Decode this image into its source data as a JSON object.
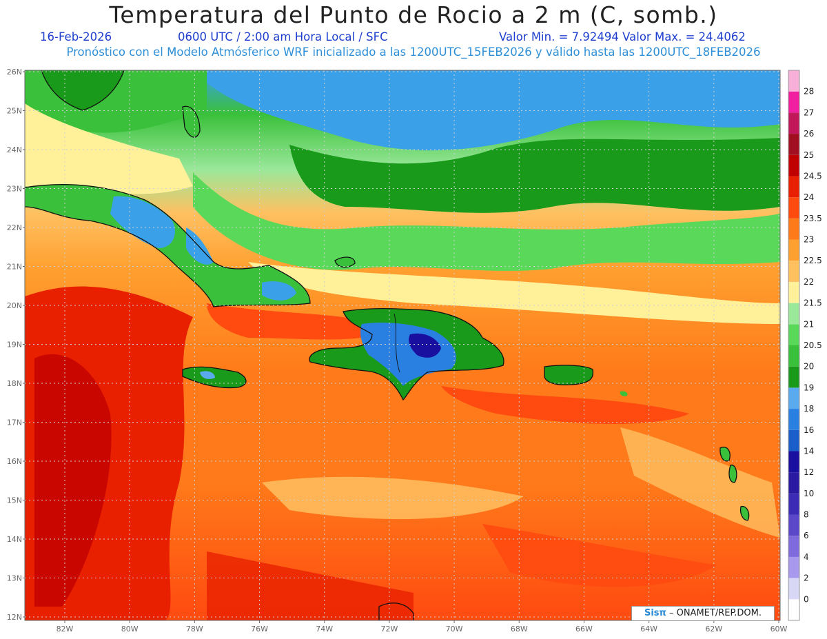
{
  "title": "Temperatura del Punto de Rocio a 2 m (C, somb.)",
  "date": "16-Feb-2026",
  "time": "0600 UTC / 2:00 am Hora Local / SFC",
  "minmax": "Valor Min. = 7.92494  Valor Max. = 24.4062",
  "model_info": "Pronóstico con el Modelo Atmósferico WRF inicializado a las 1200UTC_15FEB2026 y válido hasta las  1200UTC_18FEB2026",
  "lat_labels": [
    "26N",
    "25N",
    "24N",
    "23N",
    "22N",
    "21N",
    "20N",
    "19N",
    "18N",
    "17N",
    "16N",
    "15N",
    "14N",
    "13N",
    "12N"
  ],
  "lon_labels": [
    "82W",
    "80W",
    "78W",
    "76W",
    "74W",
    "72W",
    "70W",
    "68W",
    "66W",
    "64W",
    "62W",
    "60W"
  ],
  "colorbar": {
    "labels": [
      "0",
      "2",
      "4",
      "6",
      "8",
      "10",
      "12",
      "14",
      "16",
      "18",
      "19",
      "20",
      "20.5",
      "21",
      "21.5",
      "22",
      "22.5",
      "23",
      "23.5",
      "24",
      "24.5",
      "25",
      "26",
      "27",
      "28"
    ],
    "colors": [
      "#ffffff",
      "#d8d8f6",
      "#a898ee",
      "#7f6ade",
      "#5a48c8",
      "#3c2cb4",
      "#2a1aa0",
      "#1a10a0",
      "#1a5ec8",
      "#2a80e0",
      "#5aaaf0",
      "#1a9a1a",
      "#3ac03a",
      "#5ad85a",
      "#9ae89a",
      "#fff09a",
      "#ffc060",
      "#ffa030",
      "#ff7a1a",
      "#ff4a10",
      "#e82000",
      "#c00000",
      "#a01020",
      "#c0185a",
      "#f020a0",
      "#f8b0d8"
    ]
  },
  "badge": {
    "logo": "Sisπ",
    "text": "– ONAMET/REP.DOM."
  }
}
